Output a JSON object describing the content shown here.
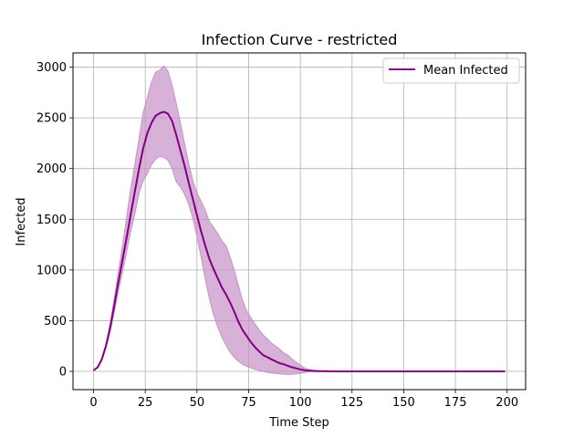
{
  "chart_data": {
    "type": "line",
    "title": "Infection Curve - restricted",
    "xlabel": "Time Step",
    "ylabel": "Infected",
    "xlim": [
      -9.95,
      208.95
    ],
    "ylim": [
      -180,
      3140
    ],
    "xticks": [
      0,
      25,
      50,
      75,
      100,
      125,
      150,
      175,
      200
    ],
    "yticks": [
      0,
      500,
      1000,
      1500,
      2000,
      2500,
      3000
    ],
    "xtick_labels": [
      "0",
      "25",
      "50",
      "75",
      "100",
      "125",
      "150",
      "175",
      "200"
    ],
    "ytick_labels": [
      "0",
      "500",
      "1000",
      "1500",
      "2000",
      "2500",
      "3000"
    ],
    "grid": true,
    "legend_position": "top-right",
    "series": [
      {
        "name": "Mean Infected",
        "color": "#800080",
        "x": [
          0,
          2,
          4,
          6,
          8,
          10,
          12,
          14,
          16,
          18,
          20,
          22,
          24,
          26,
          28,
          30,
          32,
          34,
          36,
          38,
          40,
          42,
          44,
          46,
          48,
          50,
          52,
          54,
          56,
          58,
          60,
          62,
          64,
          66,
          68,
          70,
          72,
          74,
          76,
          78,
          80,
          82,
          84,
          86,
          88,
          90,
          92,
          94,
          96,
          98,
          100,
          102,
          104,
          106,
          108,
          110,
          115,
          120,
          130,
          140,
          150,
          160,
          170,
          180,
          190,
          199
        ],
        "mean": [
          10,
          40,
          120,
          250,
          430,
          650,
          880,
          1100,
          1320,
          1550,
          1780,
          2000,
          2200,
          2350,
          2450,
          2520,
          2545,
          2560,
          2540,
          2470,
          2330,
          2180,
          2030,
          1860,
          1700,
          1540,
          1380,
          1240,
          1110,
          1010,
          920,
          830,
          760,
          680,
          590,
          490,
          410,
          350,
          290,
          240,
          200,
          160,
          140,
          120,
          100,
          80,
          70,
          55,
          40,
          30,
          20,
          12,
          8,
          5,
          3,
          2,
          1,
          0,
          0,
          0,
          0,
          0,
          0,
          0,
          0,
          0
        ],
        "upper": [
          10,
          45,
          130,
          270,
          470,
          720,
          980,
          1240,
          1520,
          1800,
          2050,
          2300,
          2550,
          2700,
          2850,
          2950,
          2970,
          3010,
          2960,
          2820,
          2640,
          2450,
          2250,
          2050,
          1880,
          1760,
          1680,
          1590,
          1480,
          1420,
          1360,
          1290,
          1240,
          1130,
          1000,
          850,
          700,
          600,
          530,
          470,
          410,
          360,
          320,
          280,
          250,
          220,
          180,
          160,
          120,
          90,
          60,
          35,
          20,
          12,
          8,
          5,
          2,
          1,
          0,
          0,
          0,
          0,
          0,
          0,
          0,
          0
        ],
        "lower": [
          10,
          35,
          110,
          230,
          390,
          580,
          790,
          980,
          1180,
          1380,
          1560,
          1760,
          1880,
          1950,
          2040,
          2090,
          2120,
          2110,
          2080,
          2000,
          1870,
          1820,
          1750,
          1650,
          1510,
          1330,
          1130,
          910,
          720,
          560,
          440,
          340,
          260,
          190,
          140,
          100,
          70,
          50,
          35,
          20,
          10,
          0,
          -10,
          -15,
          -20,
          -25,
          -30,
          -30,
          -30,
          -25,
          -20,
          -12,
          -5,
          -2,
          0,
          0,
          0,
          0,
          0,
          0,
          0,
          0,
          0,
          0,
          0,
          0
        ]
      }
    ],
    "band_color": "#c890c8"
  }
}
